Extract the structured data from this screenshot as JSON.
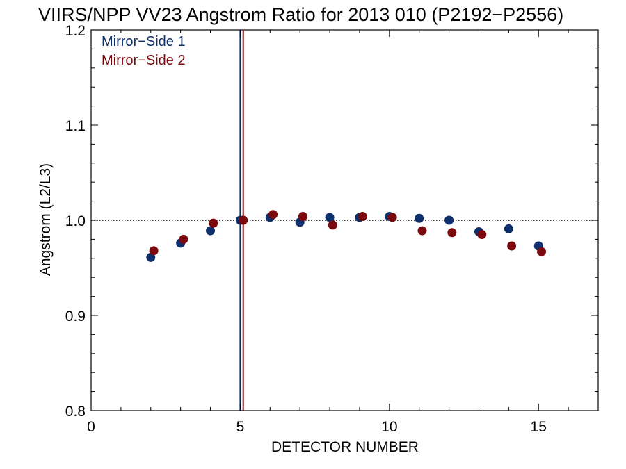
{
  "chart_data": {
    "type": "scatter",
    "title": "VIIRS/NPP VV23 Angstrom Ratio for 2013 010 (P2192−P2556)",
    "xlabel": "DETECTOR NUMBER",
    "ylabel": "Angstrom (L2/L3)",
    "xlim": [
      0,
      17
    ],
    "ylim": [
      0.8,
      1.2
    ],
    "xticks": [
      0,
      5,
      10,
      15
    ],
    "yticks": [
      0.8,
      0.9,
      1.0,
      1.1,
      1.2
    ],
    "xtick_labels": [
      "0",
      "5",
      "10",
      "15"
    ],
    "ytick_labels": [
      "0.8",
      "0.9",
      "1.0",
      "1.1",
      "1.2"
    ],
    "reference_line": {
      "y": 1.0,
      "style": "dotted"
    },
    "vertical_lines": [
      {
        "x": 5.0,
        "series": "Mirror−Side 1"
      },
      {
        "x": 5.1,
        "series": "Mirror−Side 2"
      }
    ],
    "legend_position": "top-left",
    "series": [
      {
        "name": "Mirror−Side 1",
        "color": "#0d2f6b",
        "x": [
          2,
          3,
          4,
          5,
          6,
          7,
          8,
          9,
          10,
          11,
          12,
          13,
          14,
          15
        ],
        "y": [
          0.961,
          0.976,
          0.989,
          1.0,
          1.003,
          0.998,
          1.003,
          1.003,
          1.004,
          1.002,
          1.0,
          0.988,
          0.991,
          0.973
        ]
      },
      {
        "name": "Mirror−Side 2",
        "color": "#7a0a0e",
        "x": [
          2.1,
          3.1,
          4.1,
          5.1,
          6.1,
          7.1,
          8.1,
          9.1,
          10.1,
          11.1,
          12.1,
          13.1,
          14.1,
          15.1
        ],
        "y": [
          0.968,
          0.98,
          0.997,
          1.0,
          1.006,
          1.004,
          0.995,
          1.004,
          1.003,
          0.989,
          0.987,
          0.985,
          0.973,
          0.967
        ]
      }
    ]
  }
}
